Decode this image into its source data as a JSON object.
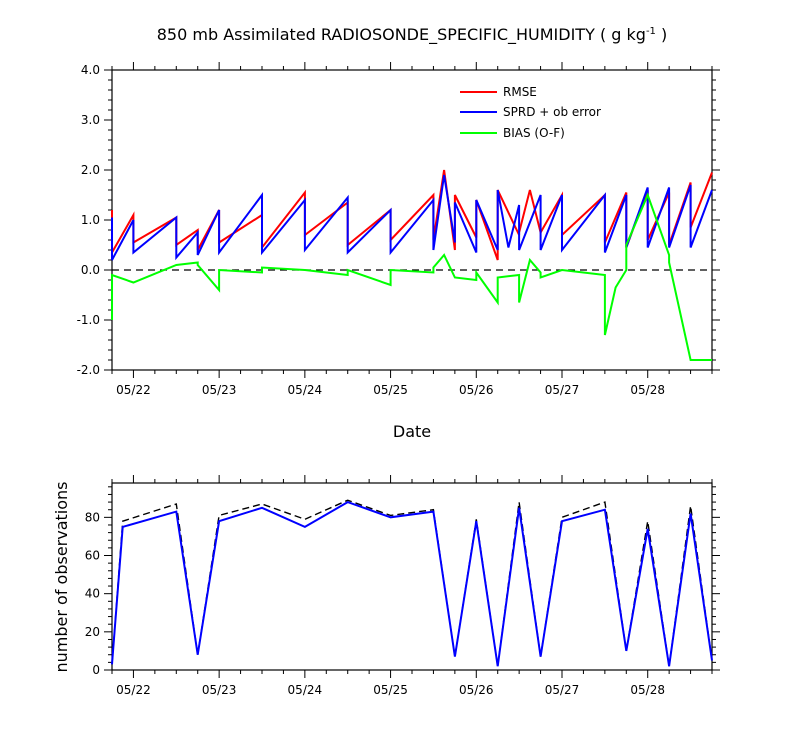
{
  "chart_data": [
    {
      "type": "line",
      "title": "850 mb Assimilated RADIOSONDE_SPECIFIC_HUMIDITY ( g kg",
      "title_superscript": "-1",
      "title_suffix": " )",
      "xlabel": "Date",
      "ylabel": "",
      "ylim": [
        -2.0,
        4.0
      ],
      "xlim": [
        "05/21 18Z",
        "05/28 18Z"
      ],
      "y_ticks": [
        -2.0,
        -1.0,
        0.0,
        1.0,
        2.0,
        3.0,
        4.0
      ],
      "y_tick_labels": [
        "-2.0",
        "-1.0",
        "0.0",
        "1.0",
        "2.0",
        "3.0",
        "4.0"
      ],
      "x_tick_values": [
        0.25,
        1.25,
        2.25,
        3.25,
        4.25,
        5.25,
        6.25
      ],
      "x_tick_labels": [
        "05/22",
        "05/23",
        "05/24",
        "05/25",
        "05/26",
        "05/27",
        "05/28"
      ],
      "zero_line": "dashed",
      "legend_placement": "top-right",
      "colors": {
        "RMSE": "#ff0000",
        "SPRD + ob error": "#0000ff",
        "BIAS (O-F)": "#00ff00"
      },
      "series": [
        {
          "name": "RMSE",
          "color": "#ff0000",
          "x": [
            0.0,
            0.0,
            0.25,
            0.25,
            0.75,
            0.75,
            1.0,
            1.0,
            1.25,
            1.25,
            1.75,
            1.75,
            2.25,
            2.25,
            2.75,
            2.75,
            3.25,
            3.25,
            3.75,
            3.75,
            3.875,
            4.0,
            4.0,
            4.25,
            4.25,
            4.5,
            4.5,
            4.75,
            4.75,
            4.875,
            5.0,
            5.25,
            5.25,
            5.75,
            5.75,
            6.0,
            6.0,
            6.25,
            6.25,
            6.5,
            6.5,
            6.75,
            6.75,
            7.0
          ],
          "y": [
            1.2,
            0.35,
            1.1,
            0.55,
            1.05,
            0.5,
            0.8,
            0.4,
            1.2,
            0.55,
            1.1,
            0.45,
            1.55,
            0.7,
            1.35,
            0.5,
            1.2,
            0.6,
            1.5,
            0.6,
            2.0,
            0.4,
            1.5,
            0.65,
            1.4,
            0.2,
            1.6,
            0.7,
            0.75,
            1.6,
            0.75,
            1.5,
            0.7,
            1.5,
            0.55,
            1.55,
            0.45,
            1.6,
            0.6,
            1.55,
            0.5,
            1.75,
            0.85,
            1.95
          ]
        },
        {
          "name": "SPRD + ob error",
          "color": "#0000ff",
          "x": [
            0.0,
            0.0,
            0.25,
            0.25,
            0.75,
            0.75,
            1.0,
            1.0,
            1.25,
            1.25,
            1.75,
            1.75,
            2.25,
            2.25,
            2.75,
            2.75,
            3.25,
            3.25,
            3.75,
            3.75,
            3.875,
            4.0,
            4.0,
            4.25,
            4.25,
            4.5,
            4.5,
            4.625,
            4.75,
            4.75,
            5.0,
            5.0,
            5.25,
            5.25,
            5.75,
            5.75,
            6.0,
            6.0,
            6.25,
            6.25,
            6.5,
            6.5,
            6.75,
            6.75,
            7.0
          ],
          "y": [
            1.05,
            0.2,
            1.0,
            0.35,
            1.05,
            0.25,
            0.75,
            0.3,
            1.2,
            0.35,
            1.5,
            0.35,
            1.4,
            0.4,
            1.45,
            0.35,
            1.2,
            0.35,
            1.4,
            0.4,
            1.9,
            0.55,
            1.35,
            0.35,
            1.4,
            0.4,
            1.6,
            0.45,
            1.3,
            0.4,
            1.5,
            0.4,
            1.5,
            0.4,
            1.5,
            0.35,
            1.5,
            0.45,
            1.65,
            0.45,
            1.65,
            0.45,
            1.7,
            0.45,
            1.6
          ]
        },
        {
          "name": "BIAS (O-F)",
          "color": "#00ff00",
          "x": [
            0.0,
            0.0,
            0.25,
            0.75,
            1.0,
            1.0,
            1.25,
            1.25,
            1.75,
            1.75,
            2.25,
            2.75,
            2.75,
            3.25,
            3.25,
            3.75,
            3.75,
            3.875,
            4.0,
            4.25,
            4.25,
            4.5,
            4.5,
            4.75,
            4.75,
            4.875,
            5.0,
            5.0,
            5.25,
            5.75,
            5.75,
            5.875,
            6.0,
            6.0,
            6.25,
            6.5,
            6.5,
            6.75,
            7.0
          ],
          "y": [
            -1.0,
            -0.1,
            -0.25,
            0.1,
            0.15,
            0.1,
            -0.4,
            0.0,
            -0.05,
            0.05,
            0.0,
            -0.1,
            0.0,
            -0.3,
            0.0,
            -0.05,
            0.05,
            0.3,
            -0.15,
            -0.2,
            -0.05,
            -0.65,
            -0.15,
            -0.1,
            -0.65,
            0.2,
            -0.05,
            -0.15,
            0.0,
            -0.1,
            -1.3,
            -0.35,
            0.0,
            0.5,
            1.5,
            0.3,
            0.15,
            -1.8,
            -1.8
          ]
        }
      ]
    },
    {
      "type": "line",
      "title": "",
      "xlabel": "",
      "ylabel": "number of observations",
      "ylim": [
        0,
        98
      ],
      "xlim": [
        "05/21 18Z",
        "05/28 18Z"
      ],
      "y_ticks": [
        0,
        20,
        40,
        60,
        80
      ],
      "y_tick_labels": [
        "0",
        "20",
        "40",
        "60",
        "80"
      ],
      "x_tick_values": [
        0.25,
        1.25,
        2.25,
        3.25,
        4.25,
        5.25,
        6.25
      ],
      "x_tick_labels": [
        "05/22",
        "05/23",
        "05/24",
        "05/25",
        "05/26",
        "05/27",
        "05/28"
      ],
      "series": [
        {
          "name": "",
          "style": "dashed",
          "color": "#000000",
          "x": [
            0.0,
            0.125,
            0.75,
            1.0,
            1.25,
            1.75,
            2.25,
            2.75,
            3.25,
            3.75,
            4.0,
            4.25,
            4.5,
            4.75,
            5.0,
            5.25,
            5.75,
            6.0,
            6.25,
            6.5,
            6.75,
            7.0
          ],
          "y": [
            3,
            78,
            87,
            8,
            81,
            87,
            79,
            89,
            81,
            84,
            7,
            79,
            2,
            88,
            7,
            80,
            88,
            10,
            78,
            2,
            86,
            5
          ]
        },
        {
          "name": "",
          "style": "solid",
          "color": "#0000ff",
          "x": [
            0.0,
            0.125,
            0.75,
            1.0,
            1.25,
            1.75,
            2.25,
            2.75,
            3.25,
            3.75,
            4.0,
            4.25,
            4.5,
            4.75,
            5.0,
            5.25,
            5.75,
            6.0,
            6.25,
            6.5,
            6.75,
            7.0
          ],
          "y": [
            3,
            75,
            83,
            8,
            78,
            85,
            75,
            88,
            80,
            83,
            7,
            78,
            2,
            85,
            7,
            78,
            84,
            10,
            74,
            2,
            82,
            5
          ]
        }
      ]
    }
  ]
}
